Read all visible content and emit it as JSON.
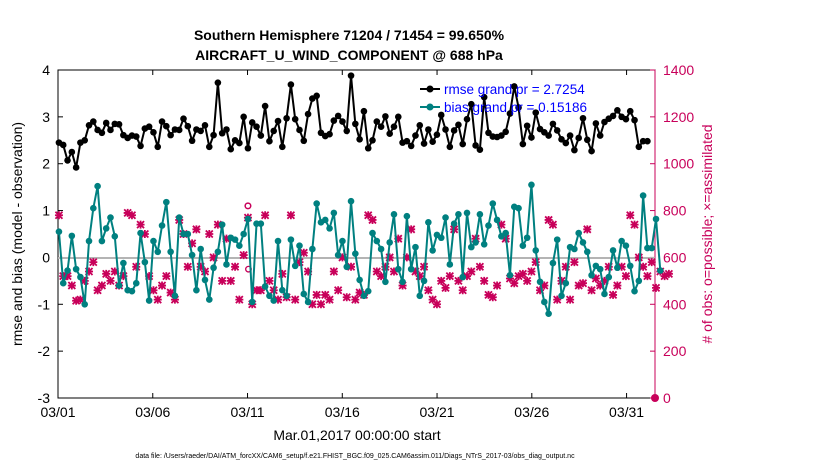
{
  "chart_data": {
    "type": "line",
    "title_line1": "Southern Hemisphere 71204 / 71454 = 99.650%",
    "title_line2": "AIRCRAFT_U_WIND_COMPONENT @ 688 hPa",
    "xlabel": "Mar.01,2017 00:00:00 start",
    "ylabel_left": "rmse and bias (model - observation)",
    "ylabel_right": "# of obs: o=possible; ×=assimilated",
    "footer": "data file: /Users/raeder/DAI/ATM_forcXX/CAM6_setup/f.e21.FHIST_BGC.f09_025.CAM6assim.011/Diags_NTrS_2017-03/obs_diag_output.nc",
    "xlim": [
      0,
      31.5
    ],
    "ylim_left": [
      -3,
      4
    ],
    "ylim_right": [
      0,
      1400
    ],
    "x_ticks": [
      0,
      5,
      10,
      15,
      20,
      25,
      30
    ],
    "x_tick_labels": [
      "03/01",
      "03/06",
      "03/11",
      "03/16",
      "03/21",
      "03/26",
      "03/31"
    ],
    "y_ticks_left": [
      -3,
      -2,
      -1,
      0,
      1,
      2,
      3,
      4
    ],
    "y_tick_labels_left": [
      "-3",
      "-2",
      "-1",
      "0",
      "1",
      "2",
      "3",
      "4"
    ],
    "y_ticks_right": [
      0,
      200,
      400,
      600,
      800,
      1000,
      1200,
      1400
    ],
    "y_tick_labels_right": [
      "0",
      "200",
      "400",
      "600",
      "800",
      "1000",
      "1200",
      "1400"
    ],
    "legend_placement": "top-right",
    "colors": {
      "rmse": "#000000",
      "bias": "#008080",
      "obs": "#c8005a",
      "zero_line": "#b4b4b4"
    },
    "series": [
      {
        "name": "rmse grand pr = 2.7254",
        "axis": "left",
        "values": [
          2.45,
          2.4,
          2.07,
          2.25,
          1.92,
          2.45,
          2.5,
          2.82,
          2.9,
          2.72,
          2.66,
          2.87,
          2.72,
          2.85,
          2.84,
          2.61,
          2.55,
          2.6,
          2.58,
          2.38,
          2.75,
          2.79,
          2.67,
          2.36,
          2.9,
          2.8,
          2.61,
          2.73,
          2.72,
          2.96,
          2.8,
          2.49,
          2.73,
          2.7,
          2.82,
          2.36,
          2.61,
          3.73,
          2.65,
          2.73,
          2.31,
          2.5,
          2.44,
          3.0,
          2.33,
          2.88,
          2.79,
          2.6,
          3.23,
          2.48,
          2.7,
          2.91,
          2.36,
          2.97,
          3.69,
          2.95,
          2.72,
          2.49,
          3.06,
          3.39,
          3.45,
          2.66,
          2.59,
          2.63,
          2.92,
          3.02,
          2.9,
          2.7,
          3.88,
          2.85,
          2.52,
          3.12,
          2.33,
          2.5,
          2.9,
          2.79,
          3.01,
          2.64,
          2.79,
          3.0,
          2.45,
          2.48,
          2.38,
          2.6,
          2.82,
          2.43,
          2.73,
          2.47,
          2.62,
          3.04,
          2.73,
          2.36,
          2.71,
          2.83,
          2.42,
          2.95,
          3.27,
          2.39,
          2.3,
          3.42,
          2.66,
          2.58,
          2.57,
          2.6,
          2.68,
          3.07,
          3.65,
          3.2,
          2.42,
          2.81,
          2.56,
          3.09,
          2.74,
          2.67,
          2.6,
          2.85,
          2.71,
          2.52,
          2.44,
          2.6,
          2.29,
          2.55,
          2.97,
          2.51,
          2.27,
          2.86,
          2.6,
          2.89,
          2.96,
          3.02,
          3.14,
          3.0,
          2.95,
          3.12,
          2.93,
          2.36,
          2.48,
          2.48
        ],
        "dates": []
      },
      {
        "name": "bias grand pr = 0.15186",
        "axis": "left",
        "values": [
          0.55,
          -0.55,
          -0.28,
          0.46,
          -0.25,
          -0.42,
          -1.0,
          0.35,
          1.05,
          1.52,
          0.35,
          0.62,
          0.85,
          0.45,
          -0.6,
          -0.12,
          -0.7,
          -0.72,
          -0.55,
          0.52,
          -0.1,
          -0.92,
          0.35,
          0.12,
          0.68,
          1.18,
          0.12,
          -0.82,
          0.85,
          0.5,
          0.5,
          0.05,
          -0.7,
          0.18,
          -0.48,
          -0.9,
          -0.22,
          0.12,
          0.7,
          -0.15,
          0.42,
          0.38,
          0.25,
          0.5,
          0.82,
          -0.95,
          0.72,
          0.72,
          -0.62,
          -0.82,
          -0.92,
          0.35,
          -0.7,
          -0.82,
          0.38,
          -0.18,
          0.25,
          -0.78,
          -0.95,
          0.18,
          1.15,
          0.75,
          0.8,
          0.62,
          0.95,
          0.05,
          0.35,
          -0.2,
          1.2,
          0.08,
          -0.48,
          -0.82,
          -0.72,
          0.52,
          0.35,
          0.18,
          -0.52,
          0.32,
          0.92,
          -0.25,
          -0.52,
          0.88,
          -0.25,
          0.22,
          -0.82,
          -0.5,
          0.75,
          0.15,
          0.48,
          0.42,
          0.85,
          -0.15,
          0.72,
          0.92,
          -0.42,
          0.95,
          0.22,
          0.32,
          0.92,
          0.28,
          0.68,
          1.15,
          0.8,
          0.45,
          0.52,
          -0.38,
          1.08,
          1.05,
          0.25,
          0.42,
          1.55,
          0.15,
          -0.52,
          -0.95,
          -1.2,
          -0.12,
          0.38,
          -0.82,
          -0.55,
          0.22,
          0.18,
          0.52,
          0.32,
          0.12,
          -0.38,
          -0.18,
          -0.25,
          -0.78,
          -0.42,
          0.15,
          -0.22,
          0.35,
          0.25,
          -0.18,
          -0.72,
          -0.5,
          1.32,
          0.2,
          0.2,
          0.82,
          -0.28
        ],
        "dates": []
      },
      {
        "name": "obs assimilated",
        "axis": "right",
        "values": [
          780,
          520,
          520,
          480,
          415,
          420,
          500,
          540,
          580,
          460,
          480,
          530,
          500,
          540,
          480,
          520,
          790,
          780,
          560,
          740,
          700,
          520,
          460,
          420,
          480,
          520,
          450,
          420,
          760,
          700,
          560,
          660,
          720,
          560,
          540,
          700,
          600,
          740,
          500,
          680,
          500,
          560,
          420,
          610,
          770,
          400,
          460,
          460,
          780,
          500,
          460,
          420,
          530,
          430,
          780,
          420,
          580,
          620,
          540,
          400,
          440,
          400,
          440,
          420,
          540,
          460,
          600,
          430,
          560,
          420,
          450,
          440,
          780,
          760,
          540,
          520,
          560,
          600,
          540,
          680,
          480,
          600,
          720,
          540,
          520,
          560,
          460,
          420,
          400,
          500,
          470,
          520,
          720,
          500,
          460,
          520,
          540,
          680,
          560,
          500,
          440,
          430,
          480,
          740,
          680,
          510,
          490,
          520,
          530,
          500,
          540,
          580,
          460,
          480,
          760,
          740,
          420,
          500,
          560,
          420,
          580,
          480,
          490,
          720,
          460,
          510,
          480,
          500,
          560,
          440,
          480,
          560,
          520,
          780,
          740,
          600,
          560,
          520,
          580,
          470,
          540,
          520,
          530
        ],
        "dates": []
      },
      {
        "name": "obs possible",
        "axis": "right",
        "values": [
          780,
          520,
          520,
          480,
          415,
          420,
          500,
          540,
          580,
          460,
          480,
          530,
          500,
          540,
          480,
          520,
          790,
          780,
          560,
          740,
          700,
          520,
          460,
          420,
          480,
          520,
          450,
          420,
          760,
          700,
          560,
          660,
          720,
          560,
          540,
          700,
          600,
          740,
          500,
          680,
          500,
          560,
          420,
          610,
          820,
          400,
          460,
          460,
          780,
          500,
          460,
          420,
          530,
          430,
          780,
          420,
          580,
          620,
          540,
          400,
          440,
          400,
          440,
          420,
          540,
          460,
          600,
          430,
          560,
          420,
          450,
          440,
          780,
          760,
          540,
          520,
          560,
          600,
          540,
          680,
          480,
          600,
          720,
          540,
          520,
          560,
          460,
          420,
          400,
          500,
          470,
          520,
          720,
          500,
          460,
          520,
          540,
          680,
          560,
          500,
          440,
          430,
          480,
          740,
          680,
          510,
          490,
          520,
          530,
          500,
          540,
          580,
          460,
          480,
          760,
          740,
          420,
          500,
          560,
          420,
          580,
          480,
          490,
          720,
          460,
          510,
          480,
          500,
          560,
          440,
          480,
          560,
          520,
          780,
          740,
          600,
          560,
          520,
          580,
          470,
          540,
          520,
          530
        ],
        "dates": []
      }
    ],
    "annotations": [
      "single open marker near 03/11 at about 550 obs",
      "final right-axis marker at 0 obs"
    ]
  }
}
